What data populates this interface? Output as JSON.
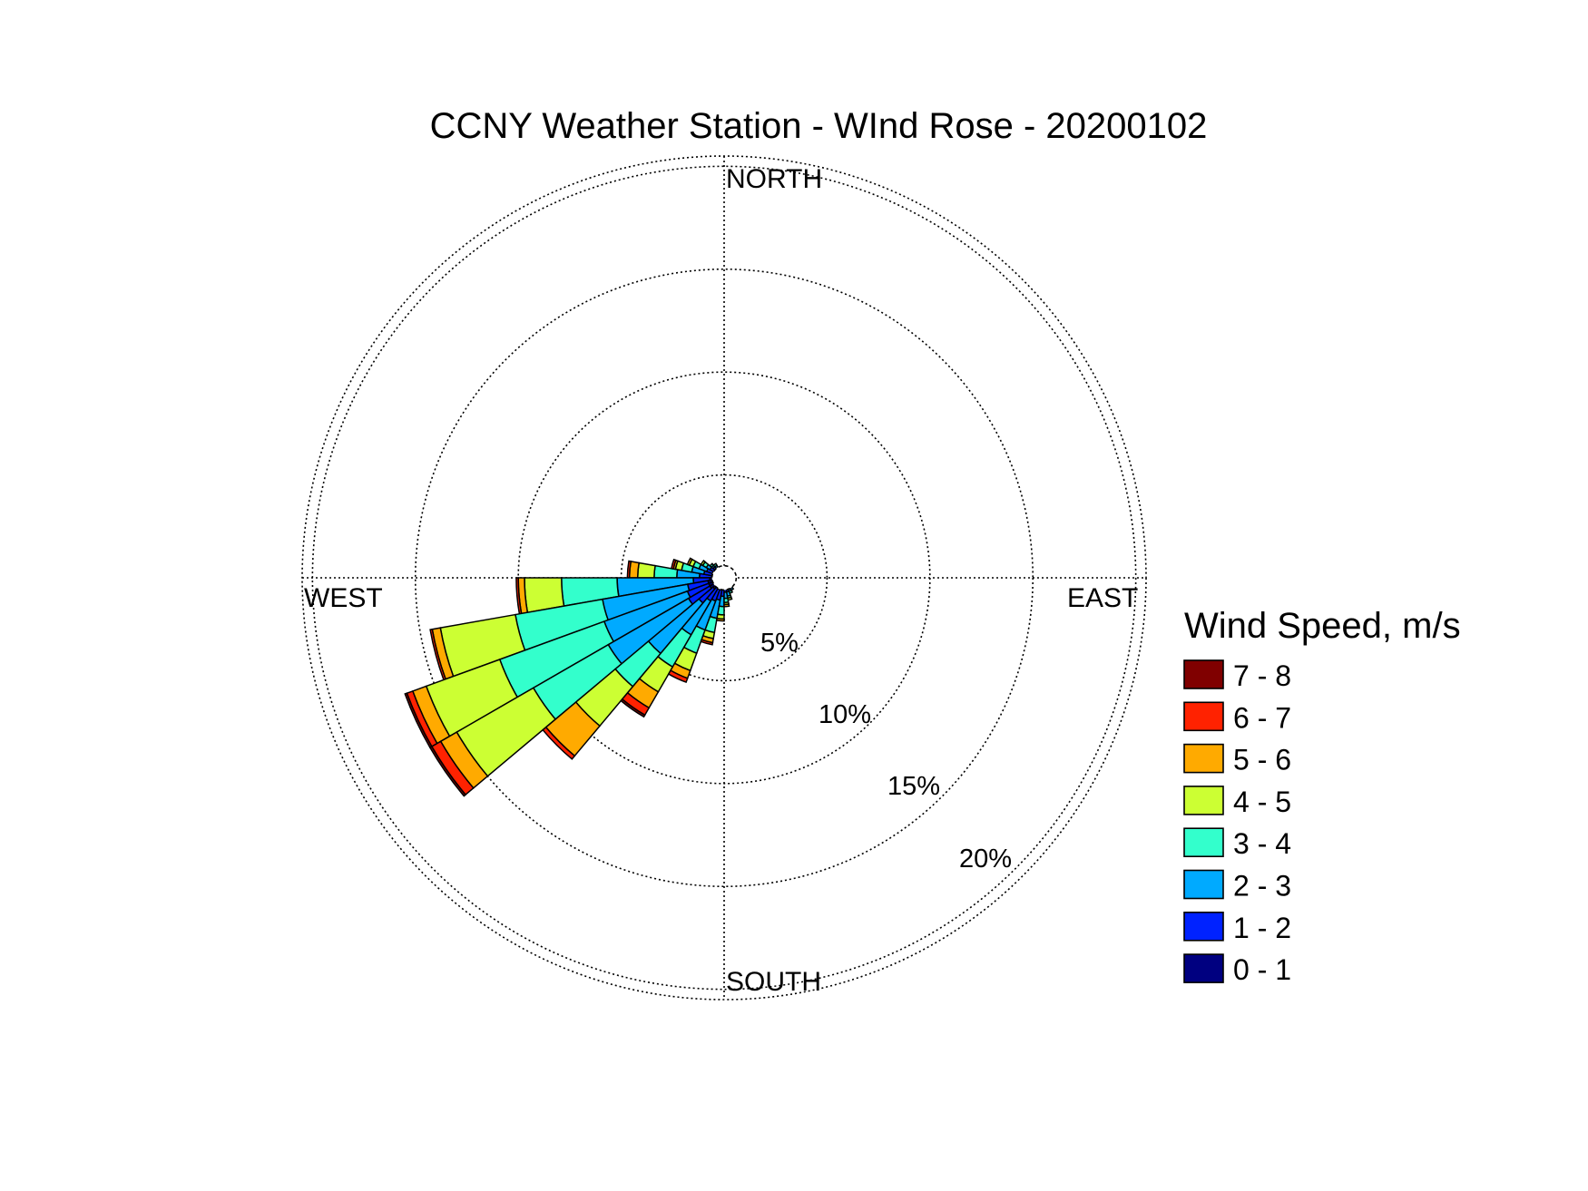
{
  "chart_data": {
    "type": "wind-rose",
    "title": "CCNY Weather Station - WInd Rose - 20200102",
    "directions": {
      "north": "NORTH",
      "south": "SOUTH",
      "east": "EAST",
      "west": "WEST"
    },
    "ring_values": [
      5,
      10,
      15,
      20
    ],
    "ring_labels": [
      "5%",
      "10%",
      "15%",
      "20%"
    ],
    "max_percent": 20.5,
    "calm_center_percent": 0.5,
    "legend_title": "Wind Speed, m/s",
    "speed_bins": [
      {
        "label": "0 - 1",
        "color": "#000080"
      },
      {
        "label": "1 - 2",
        "color": "#0022ff"
      },
      {
        "label": "2 - 3",
        "color": "#00aaff"
      },
      {
        "label": "3 - 4",
        "color": "#33ffcc"
      },
      {
        "label": "4 - 5",
        "color": "#ccff33"
      },
      {
        "label": "5 - 6",
        "color": "#ffaa00"
      },
      {
        "label": "6 - 7",
        "color": "#ff2200"
      },
      {
        "label": "7 - 8",
        "color": "#800000"
      }
    ],
    "sector_width_deg": 10,
    "sectors": [
      {
        "direction_deg": 275,
        "cumulative": [
          0.6,
          1.2,
          2.3,
          3.4,
          4.2,
          4.6,
          4.7,
          4.7
        ]
      },
      {
        "direction_deg": 265,
        "cumulative": [
          0.7,
          1.5,
          5.2,
          7.9,
          9.7,
          10.0,
          10.1,
          10.1
        ]
      },
      {
        "direction_deg": 255,
        "cumulative": [
          0.8,
          1.8,
          6.0,
          10.3,
          14.0,
          14.4,
          14.5,
          14.5
        ]
      },
      {
        "direction_deg": 245,
        "cumulative": [
          0.8,
          1.9,
          6.2,
          11.6,
          15.4,
          16.1,
          16.4,
          16.5
        ]
      },
      {
        "direction_deg": 235,
        "cumulative": [
          0.8,
          2.0,
          6.5,
          10.7,
          15.0,
          15.9,
          16.4,
          16.5
        ]
      },
      {
        "direction_deg": 225,
        "cumulative": [
          0.7,
          1.6,
          4.8,
          6.9,
          9.4,
          11.3,
          11.5,
          11.5
        ]
      },
      {
        "direction_deg": 215,
        "cumulative": [
          0.6,
          1.3,
          3.2,
          5.0,
          6.4,
          7.3,
          7.7,
          7.8
        ]
      },
      {
        "direction_deg": 205,
        "cumulative": [
          0.6,
          1.2,
          2.7,
          3.9,
          4.8,
          5.2,
          5.4,
          5.4
        ]
      },
      {
        "direction_deg": 195,
        "cumulative": [
          0.6,
          1.1,
          2.0,
          2.7,
          3.0,
          3.2,
          3.3,
          3.3
        ]
      },
      {
        "direction_deg": 185,
        "cumulative": [
          0.5,
          0.9,
          1.4,
          1.8,
          2.0,
          2.1,
          2.1,
          2.1
        ]
      },
      {
        "direction_deg": 175,
        "cumulative": [
          0.5,
          0.7,
          1.0,
          1.2,
          1.3,
          1.4,
          1.4,
          1.4
        ]
      },
      {
        "direction_deg": 165,
        "cumulative": [
          0.5,
          0.7,
          0.9,
          1.0,
          1.1,
          1.1,
          1.1,
          1.1
        ]
      },
      {
        "direction_deg": 285,
        "cumulative": [
          0.6,
          1.0,
          1.6,
          2.1,
          2.4,
          2.5,
          2.6,
          2.6
        ]
      },
      {
        "direction_deg": 295,
        "cumulative": [
          0.6,
          0.9,
          1.3,
          1.6,
          1.8,
          1.9,
          1.9,
          1.9
        ]
      },
      {
        "direction_deg": 305,
        "cumulative": [
          0.5,
          0.8,
          1.0,
          1.2,
          1.3,
          1.3,
          1.3,
          1.3
        ]
      },
      {
        "direction_deg": 315,
        "cumulative": [
          0.5,
          0.7,
          0.8,
          0.9,
          0.9,
          0.9,
          0.9,
          0.9
        ]
      },
      {
        "direction_deg": 325,
        "cumulative": [
          0.5,
          0.6,
          0.7,
          0.8,
          0.8,
          0.8,
          0.8,
          0.8
        ]
      },
      {
        "direction_deg": 155,
        "cumulative": [
          0.5,
          0.6,
          0.7,
          0.8,
          0.8,
          0.8,
          0.8,
          0.8
        ]
      },
      {
        "direction_deg": 145,
        "cumulative": [
          0.5,
          0.6,
          0.7,
          0.7,
          0.7,
          0.7,
          0.7,
          0.7
        ]
      }
    ]
  }
}
